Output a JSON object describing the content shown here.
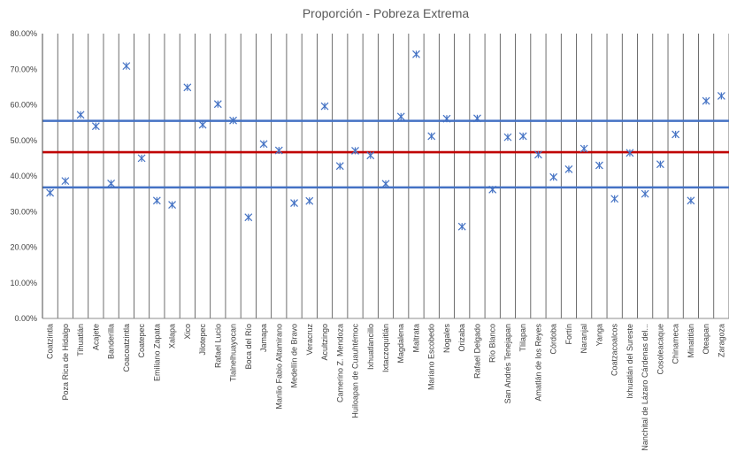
{
  "chart_data": {
    "type": "scatter",
    "title": "Proporción - Pobreza Extrema",
    "xlabel": "",
    "ylabel": "",
    "ylim": [
      0,
      0.8
    ],
    "y_ticks": [
      "0.00%",
      "10.00%",
      "20.00%",
      "30.00%",
      "40.00%",
      "50.00%",
      "60.00%",
      "70.00%",
      "80.00%"
    ],
    "categories": [
      "Coatzintla",
      "Poza Rica de Hidalgo",
      "Tihuatlán",
      "Acajete",
      "Banderilla",
      "Coacoatzintla",
      "Coatepec",
      "Emiliano Zapata",
      "Xalapa",
      "Xico",
      "Jilotepec",
      "Rafael Lucio",
      "Tlalnelhuayocan",
      "Boca del Río",
      "Jamapa",
      "Manlio Fabio Altamirano",
      "Medellín de Bravo",
      "Veracruz",
      "Acultzingo",
      "Camerino Z. Mendoza",
      "Huiloapan de Cuauhtémoc",
      "Ixhuatlancillo",
      "Ixtaczoquitlán",
      "Magdalena",
      "Maltrata",
      "Mariano Escobedo",
      "Nogales",
      "Orizaba",
      "Rafael Delgado",
      "Río Blanco",
      "San Andrés Tenejapan",
      "Tlilapan",
      "Amatlán de los Reyes",
      "Córdoba",
      "Fortín",
      "Naranjal",
      "Yanga",
      "Coatzacoalcos",
      "Ixhuatlán del Sureste",
      "Nanchital de Lázaro Cárdenas del...",
      "Cosoleacaque",
      "Chinameca",
      "Minatitlán",
      "Oteapan",
      "Zaragoza"
    ],
    "values": [
      0.353,
      0.386,
      0.572,
      0.54,
      0.379,
      0.709,
      0.45,
      0.331,
      0.319,
      0.649,
      0.544,
      0.602,
      0.556,
      0.284,
      0.49,
      0.472,
      0.324,
      0.33,
      0.596,
      0.428,
      0.471,
      0.458,
      0.378,
      0.567,
      0.742,
      0.512,
      0.561,
      0.258,
      0.562,
      0.362,
      0.509,
      0.512,
      0.46,
      0.397,
      0.419,
      0.477,
      0.43,
      0.336,
      0.465,
      0.35,
      0.433,
      0.517,
      0.331,
      0.611,
      0.625
    ],
    "reference_lines": [
      {
        "value": 0.555,
        "color": "#4472C4"
      },
      {
        "value": 0.467,
        "color": "#C00000"
      },
      {
        "value": 0.368,
        "color": "#4472C4"
      }
    ],
    "marker_color": "#4472C4",
    "grid": "vertical",
    "legend": "none"
  }
}
